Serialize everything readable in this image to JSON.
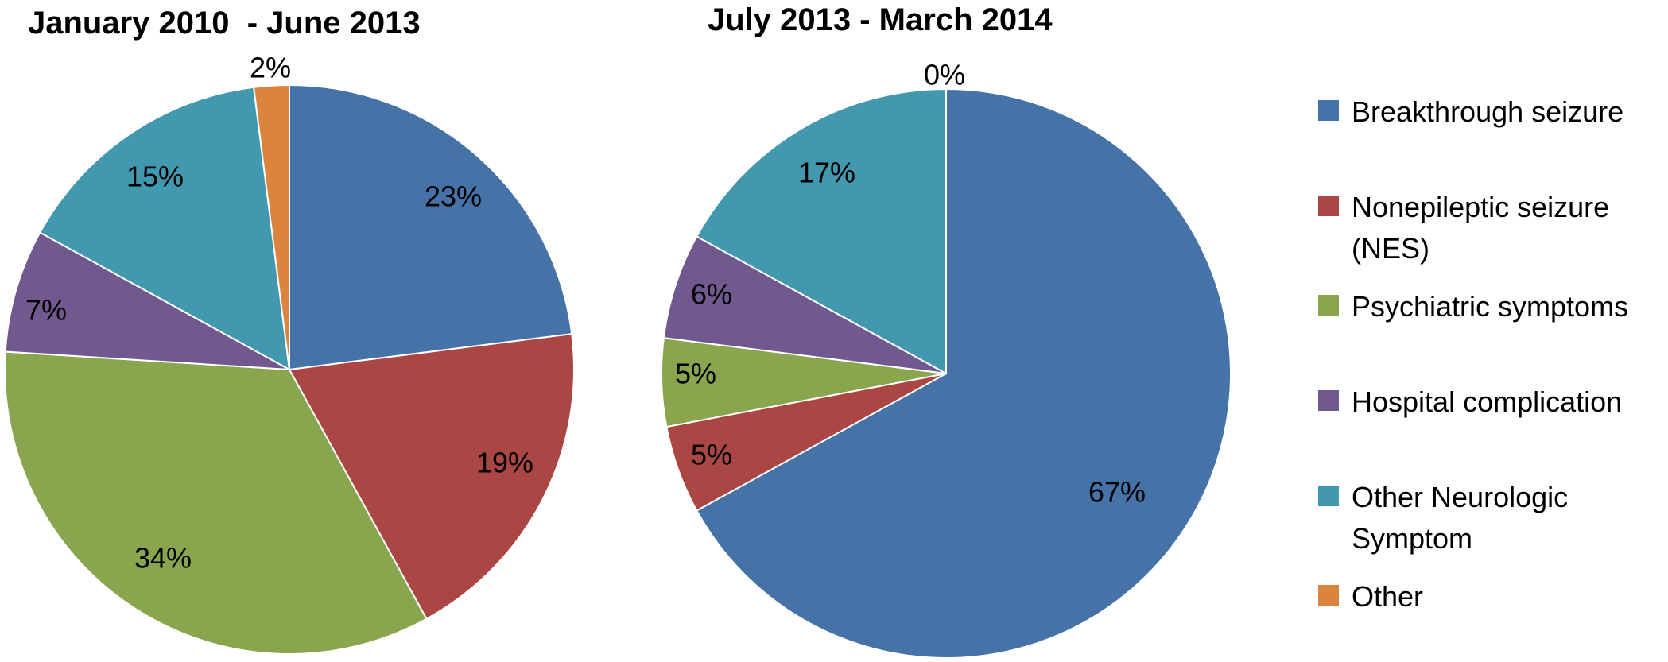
{
  "chart_data": [
    {
      "type": "pie",
      "title": "January 2010  - June 2013",
      "categories": [
        "Breakthrough seizure",
        "Nonepileptic seizure (NES)",
        "Psychiatric symptoms",
        "Hospital complication",
        "Other Neurologic Symptom",
        "Other"
      ],
      "values": [
        23,
        19,
        34,
        7,
        15,
        2
      ],
      "labels": [
        "23%",
        "19%",
        "34%",
        "7%",
        "15%",
        "2%"
      ]
    },
    {
      "type": "pie",
      "title": "July 2013 - March 2014",
      "categories": [
        "Breakthrough seizure",
        "Nonepileptic seizure (NES)",
        "Psychiatric symptoms",
        "Hospital complication",
        "Other Neurologic Symptom",
        "Other"
      ],
      "values": [
        67,
        5,
        5,
        6,
        17,
        0
      ],
      "labels": [
        "67%",
        "5%",
        "5%",
        "6%",
        "17%",
        "0%"
      ]
    }
  ],
  "legend": {
    "position": "right",
    "items": [
      {
        "lines": [
          "Breakthrough seizure"
        ],
        "color": "#4572A7"
      },
      {
        "lines": [
          "Nonepileptic seizure",
          "(NES)"
        ],
        "color": "#AA4643"
      },
      {
        "lines": [
          "Psychiatric symptoms"
        ],
        "color": "#89A54E"
      },
      {
        "lines": [
          "Hospital complication"
        ],
        "color": "#71588F"
      },
      {
        "lines": [
          "Other Neurologic",
          "Symptom"
        ],
        "color": "#4198AF"
      },
      {
        "lines": [
          "Other"
        ],
        "color": "#DB843D"
      }
    ]
  }
}
